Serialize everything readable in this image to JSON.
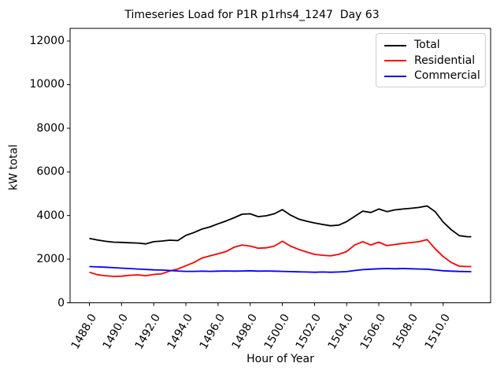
{
  "figure": {
    "title": "Timeseries Load for P1R p1rhs4_1247  Day 63",
    "xlabel": "Hour of Year",
    "ylabel": "kW total"
  },
  "chart_data": {
    "type": "line",
    "title": "Timeseries Load for P1R p1rhs4_1247  Day 63",
    "xlabel": "Hour of Year",
    "ylabel": "kW total",
    "grid": false,
    "legend_position": "upper right",
    "xlim": [
      1486.8,
      1512.95
    ],
    "ylim": [
      0,
      12580
    ],
    "xticks": [
      1488,
      1490,
      1492,
      1494,
      1496,
      1498,
      1500,
      1502,
      1504,
      1506,
      1508,
      1510
    ],
    "xtick_labels": [
      "1488.0",
      "1490.0",
      "1492.0",
      "1494.0",
      "1496.0",
      "1498.0",
      "1500.0",
      "1502.0",
      "1504.0",
      "1506.0",
      "1508.0",
      "1510.0"
    ],
    "yticks": [
      0,
      2000,
      4000,
      6000,
      8000,
      10000,
      12000
    ],
    "ytick_labels": [
      "0",
      "2000",
      "4000",
      "6000",
      "8000",
      "10000",
      "12000"
    ],
    "x": [
      1488.0,
      1488.5,
      1489.0,
      1489.5,
      1490.0,
      1490.5,
      1491.0,
      1491.5,
      1492.0,
      1492.5,
      1493.0,
      1493.5,
      1494.0,
      1494.5,
      1495.0,
      1495.5,
      1496.0,
      1496.5,
      1497.0,
      1497.5,
      1498.0,
      1498.5,
      1499.0,
      1499.5,
      1500.0,
      1500.5,
      1501.0,
      1501.5,
      1502.0,
      1502.5,
      1503.0,
      1503.5,
      1504.0,
      1504.5,
      1505.0,
      1505.5,
      1506.0,
      1506.5,
      1507.0,
      1507.5,
      1508.0,
      1508.5,
      1509.0,
      1509.5,
      1510.0,
      1510.5,
      1511.0,
      1511.5,
      1511.75
    ],
    "series": [
      {
        "name": "Total",
        "color": "#000000",
        "values": [
          2950,
          2880,
          2820,
          2780,
          2770,
          2750,
          2740,
          2700,
          2800,
          2830,
          2870,
          2850,
          3090,
          3220,
          3380,
          3480,
          3620,
          3750,
          3900,
          4060,
          4080,
          3950,
          3990,
          4080,
          4270,
          4020,
          3840,
          3740,
          3660,
          3590,
          3530,
          3560,
          3720,
          3960,
          4200,
          4140,
          4300,
          4180,
          4260,
          4300,
          4330,
          4370,
          4440,
          4180,
          3700,
          3350,
          3080,
          3030,
          3030
        ]
      },
      {
        "name": "Residential",
        "color": "#ff0000",
        "values": [
          1400,
          1290,
          1240,
          1210,
          1220,
          1260,
          1280,
          1240,
          1300,
          1330,
          1460,
          1550,
          1700,
          1850,
          2050,
          2150,
          2250,
          2350,
          2550,
          2650,
          2600,
          2500,
          2520,
          2600,
          2820,
          2600,
          2450,
          2330,
          2220,
          2180,
          2150,
          2220,
          2350,
          2650,
          2800,
          2650,
          2780,
          2620,
          2670,
          2720,
          2760,
          2800,
          2900,
          2480,
          2120,
          1850,
          1680,
          1660,
          1660
        ]
      },
      {
        "name": "Commercial",
        "color": "#0000ff",
        "values": [
          1660,
          1645,
          1630,
          1610,
          1590,
          1570,
          1550,
          1530,
          1510,
          1500,
          1480,
          1460,
          1440,
          1440,
          1450,
          1440,
          1450,
          1460,
          1450,
          1460,
          1470,
          1450,
          1460,
          1450,
          1440,
          1430,
          1420,
          1410,
          1400,
          1410,
          1400,
          1410,
          1430,
          1480,
          1520,
          1540,
          1560,
          1570,
          1560,
          1570,
          1560,
          1550,
          1540,
          1500,
          1470,
          1450,
          1435,
          1430,
          1425
        ]
      }
    ]
  }
}
